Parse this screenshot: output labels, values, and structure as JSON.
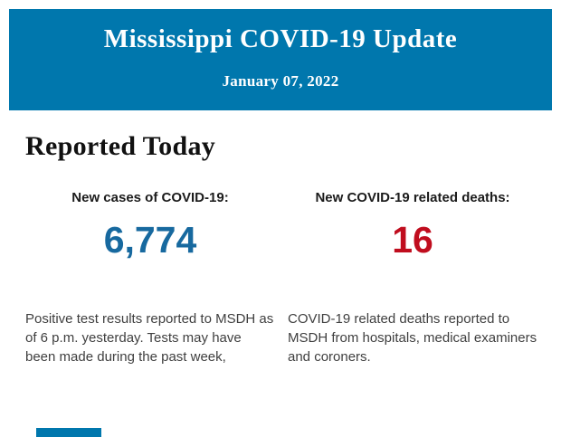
{
  "header": {
    "title": "Mississippi COVID-19 Update",
    "date": "January 07, 2022",
    "bg_color": "#0077ad"
  },
  "section": {
    "title": "Reported Today"
  },
  "stats": [
    {
      "label": "New cases of COVID-19:",
      "value": "6,774",
      "value_color": "#17699f",
      "description": "Positive test results reported to MSDH as of 6 p.m. yesterday. Tests may have been made during the past week,"
    },
    {
      "label": "New COVID-19 related deaths:",
      "value": "16",
      "value_color": "#c00d1e",
      "description": "COVID-19 related deaths reported to MSDH from hospitals, medical examiners and coroners."
    }
  ],
  "footer": {
    "fragment_color": "#0077ad"
  }
}
